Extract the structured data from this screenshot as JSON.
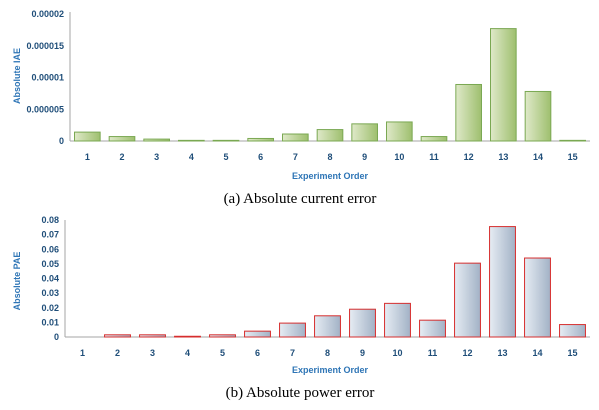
{
  "chart_data": [
    {
      "type": "bar",
      "title": "",
      "caption": "(a) Absolute current error",
      "xlabel": "Experiment Order",
      "ylabel": "Absolute IAE",
      "categories": [
        "1",
        "2",
        "3",
        "4",
        "5",
        "6",
        "7",
        "8",
        "9",
        "10",
        "11",
        "12",
        "13",
        "14",
        "15"
      ],
      "values": [
        1.4e-06,
        7e-07,
        3e-07,
        1e-07,
        1e-07,
        4e-07,
        1.1e-06,
        1.8e-06,
        2.7e-06,
        3e-06,
        7e-07,
        8.9e-06,
        1.77e-05,
        7.8e-06,
        1e-07
      ],
      "ylim": [
        0,
        2e-05
      ],
      "yticks": [
        "0",
        "0.000005",
        "0.00001",
        "0.000015",
        "0.00002"
      ],
      "grid": false,
      "legend": "none",
      "colors": {
        "bar_fill_light": "#dfe9c9",
        "bar_fill_dark": "#9ebf6e",
        "bar_stroke": "#7aa852",
        "axis": "#a6a6a6",
        "text": "#1f4e79",
        "axis_title": "#2e75b6"
      }
    },
    {
      "type": "bar",
      "title": "",
      "caption": "(b) Absolute power error",
      "xlabel": "Experiment Order",
      "ylabel": "Absolute PAE",
      "categories": [
        "1",
        "2",
        "3",
        "4",
        "5",
        "6",
        "7",
        "8",
        "9",
        "10",
        "11",
        "12",
        "13",
        "14",
        "15"
      ],
      "values": [
        0,
        0.0015,
        0.0015,
        0.0005,
        0.0015,
        0.004,
        0.0095,
        0.0145,
        0.019,
        0.023,
        0.0115,
        0.0505,
        0.0755,
        0.054,
        0.0085
      ],
      "ylim": [
        0,
        0.08
      ],
      "yticks": [
        "0",
        "0.01",
        "0.02",
        "0.03",
        "0.04",
        "0.05",
        "0.06",
        "0.07",
        "0.08"
      ],
      "grid": false,
      "legend": "none",
      "colors": {
        "bar_fill_light": "#e6ecf3",
        "bar_fill_dark": "#a2b2c6",
        "bar_stroke": "#d62e2e",
        "axis": "#a6a6a6",
        "text": "#1f4e79",
        "axis_title": "#2e75b6"
      }
    }
  ]
}
